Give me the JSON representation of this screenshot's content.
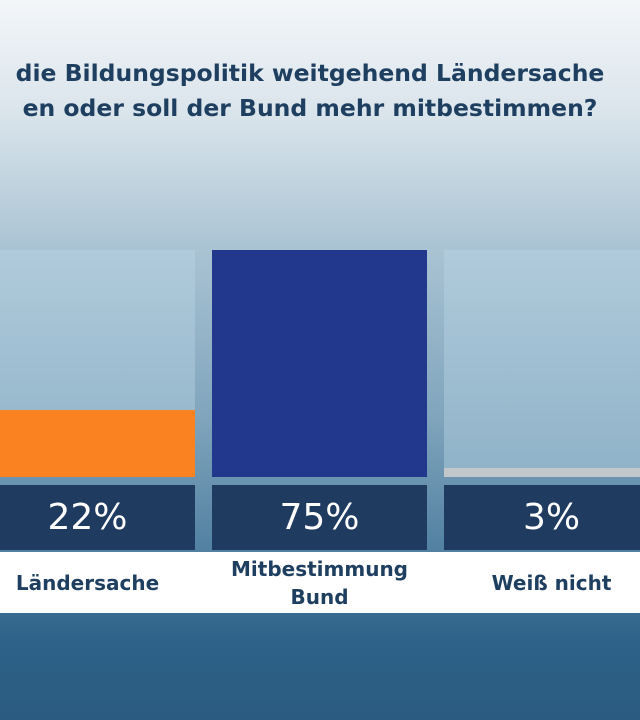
{
  "question": {
    "line1": "die Bildungspolitik weitgehend Ländersache",
    "line2": "en oder soll der Bund mehr mitbestimmen?"
  },
  "chart_data": {
    "type": "bar",
    "categories": [
      "Ländersache",
      "Mitbestimmung Bund",
      "Weiß nicht"
    ],
    "values": [
      22,
      75,
      3
    ],
    "value_labels": [
      "22%",
      "75%",
      "3%"
    ],
    "colors": [
      "#fa8220",
      "#21388c",
      "#c1c7cb"
    ],
    "ylim": [
      0,
      75
    ]
  }
}
